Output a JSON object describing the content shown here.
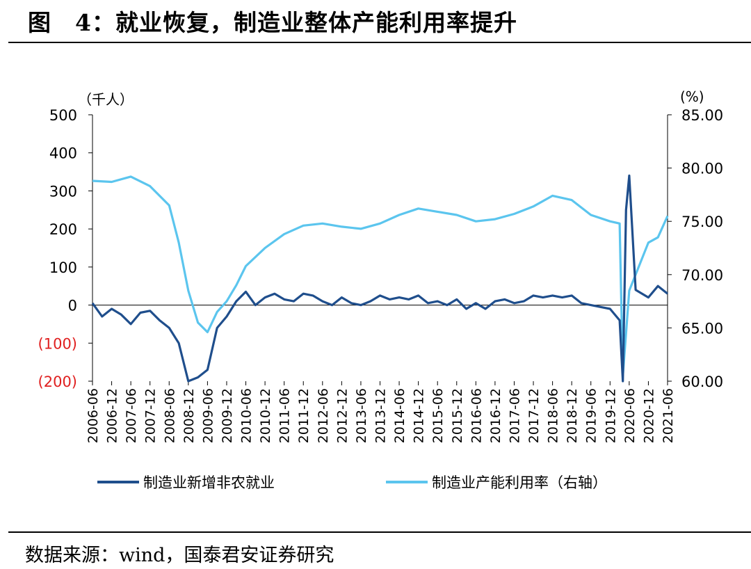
{
  "figure": {
    "title": "图　4：就业恢复，制造业整体产能利用率提升",
    "source": "数据来源：wind，国泰君安证券研究"
  },
  "colors": {
    "employment": "#1f4e8c",
    "capacity": "#5bc5ee",
    "negative_tick": "#e02020"
  },
  "chart_data": {
    "type": "line",
    "left_axis_unit": "（千人）",
    "right_axis_unit": "(%)",
    "left_ticks": [
      "500",
      "400",
      "300",
      "200",
      "100",
      "0",
      "(100)",
      "(200)"
    ],
    "right_ticks": [
      "85.00",
      "80.00",
      "75.00",
      "70.00",
      "65.00",
      "60.00"
    ],
    "ylim_left": [
      -200,
      500
    ],
    "ylim_right": [
      60,
      85
    ],
    "x_ticks": [
      "2006-06",
      "2006-12",
      "2007-06",
      "2007-12",
      "2008-06",
      "2008-12",
      "2009-06",
      "2009-12",
      "2010-06",
      "2010-12",
      "2011-06",
      "2011-12",
      "2012-06",
      "2012-12",
      "2013-06",
      "2013-12",
      "2014-06",
      "2014-12",
      "2015-06",
      "2015-12",
      "2016-06",
      "2016-12",
      "2017-06",
      "2017-12",
      "2018-06",
      "2018-12",
      "2019-06",
      "2019-12",
      "2020-06",
      "2020-12",
      "2021-06"
    ],
    "series": [
      {
        "name": "制造业新增非农就业",
        "axis": "left",
        "points": [
          [
            "2006-06",
            5
          ],
          [
            "2006-09",
            -30
          ],
          [
            "2006-12",
            -10
          ],
          [
            "2007-03",
            -25
          ],
          [
            "2007-06",
            -50
          ],
          [
            "2007-09",
            -20
          ],
          [
            "2007-12",
            -15
          ],
          [
            "2008-03",
            -40
          ],
          [
            "2008-06",
            -60
          ],
          [
            "2008-09",
            -100
          ],
          [
            "2008-12",
            -200
          ],
          [
            "2009-03",
            -190
          ],
          [
            "2009-06",
            -170
          ],
          [
            "2009-09",
            -60
          ],
          [
            "2009-12",
            -30
          ],
          [
            "2010-03",
            10
          ],
          [
            "2010-06",
            35
          ],
          [
            "2010-09",
            0
          ],
          [
            "2010-12",
            20
          ],
          [
            "2011-03",
            30
          ],
          [
            "2011-06",
            15
          ],
          [
            "2011-09",
            10
          ],
          [
            "2011-12",
            30
          ],
          [
            "2012-03",
            25
          ],
          [
            "2012-06",
            10
          ],
          [
            "2012-09",
            0
          ],
          [
            "2012-12",
            20
          ],
          [
            "2013-03",
            5
          ],
          [
            "2013-06",
            0
          ],
          [
            "2013-09",
            10
          ],
          [
            "2013-12",
            25
          ],
          [
            "2014-03",
            15
          ],
          [
            "2014-06",
            20
          ],
          [
            "2014-09",
            15
          ],
          [
            "2014-12",
            25
          ],
          [
            "2015-03",
            5
          ],
          [
            "2015-06",
            10
          ],
          [
            "2015-09",
            0
          ],
          [
            "2015-12",
            15
          ],
          [
            "2016-03",
            -10
          ],
          [
            "2016-06",
            5
          ],
          [
            "2016-09",
            -10
          ],
          [
            "2016-12",
            10
          ],
          [
            "2017-03",
            15
          ],
          [
            "2017-06",
            5
          ],
          [
            "2017-09",
            10
          ],
          [
            "2017-12",
            25
          ],
          [
            "2018-03",
            20
          ],
          [
            "2018-06",
            25
          ],
          [
            "2018-09",
            20
          ],
          [
            "2018-12",
            25
          ],
          [
            "2019-03",
            5
          ],
          [
            "2019-06",
            0
          ],
          [
            "2019-09",
            -5
          ],
          [
            "2019-12",
            -10
          ],
          [
            "2020-03",
            -40
          ],
          [
            "2020-04",
            -200
          ],
          [
            "2020-05",
            250
          ],
          [
            "2020-06",
            340
          ],
          [
            "2020-08",
            40
          ],
          [
            "2020-12",
            20
          ],
          [
            "2021-03",
            50
          ],
          [
            "2021-06",
            30
          ]
        ]
      },
      {
        "name": "制造业产能利用率（右轴）",
        "axis": "right",
        "points": [
          [
            "2006-06",
            78.8
          ],
          [
            "2006-12",
            78.7
          ],
          [
            "2007-06",
            79.2
          ],
          [
            "2007-12",
            78.3
          ],
          [
            "2008-06",
            76.5
          ],
          [
            "2008-09",
            73.0
          ],
          [
            "2008-12",
            68.5
          ],
          [
            "2009-03",
            65.5
          ],
          [
            "2009-06",
            64.6
          ],
          [
            "2009-09",
            66.5
          ],
          [
            "2009-12",
            67.5
          ],
          [
            "2010-03",
            69.0
          ],
          [
            "2010-06",
            70.8
          ],
          [
            "2010-12",
            72.5
          ],
          [
            "2011-06",
            73.8
          ],
          [
            "2011-12",
            74.6
          ],
          [
            "2012-06",
            74.8
          ],
          [
            "2012-12",
            74.5
          ],
          [
            "2013-06",
            74.3
          ],
          [
            "2013-12",
            74.8
          ],
          [
            "2014-06",
            75.6
          ],
          [
            "2014-12",
            76.2
          ],
          [
            "2015-06",
            75.9
          ],
          [
            "2015-12",
            75.6
          ],
          [
            "2016-06",
            75.0
          ],
          [
            "2016-12",
            75.2
          ],
          [
            "2017-06",
            75.7
          ],
          [
            "2017-12",
            76.4
          ],
          [
            "2018-06",
            77.4
          ],
          [
            "2018-12",
            77.0
          ],
          [
            "2019-06",
            75.6
          ],
          [
            "2019-12",
            75.0
          ],
          [
            "2020-03",
            74.8
          ],
          [
            "2020-04",
            60.5
          ],
          [
            "2020-05",
            64.5
          ],
          [
            "2020-06",
            68.5
          ],
          [
            "2020-12",
            73.0
          ],
          [
            "2021-03",
            73.5
          ],
          [
            "2021-06",
            75.5
          ]
        ]
      }
    ]
  }
}
